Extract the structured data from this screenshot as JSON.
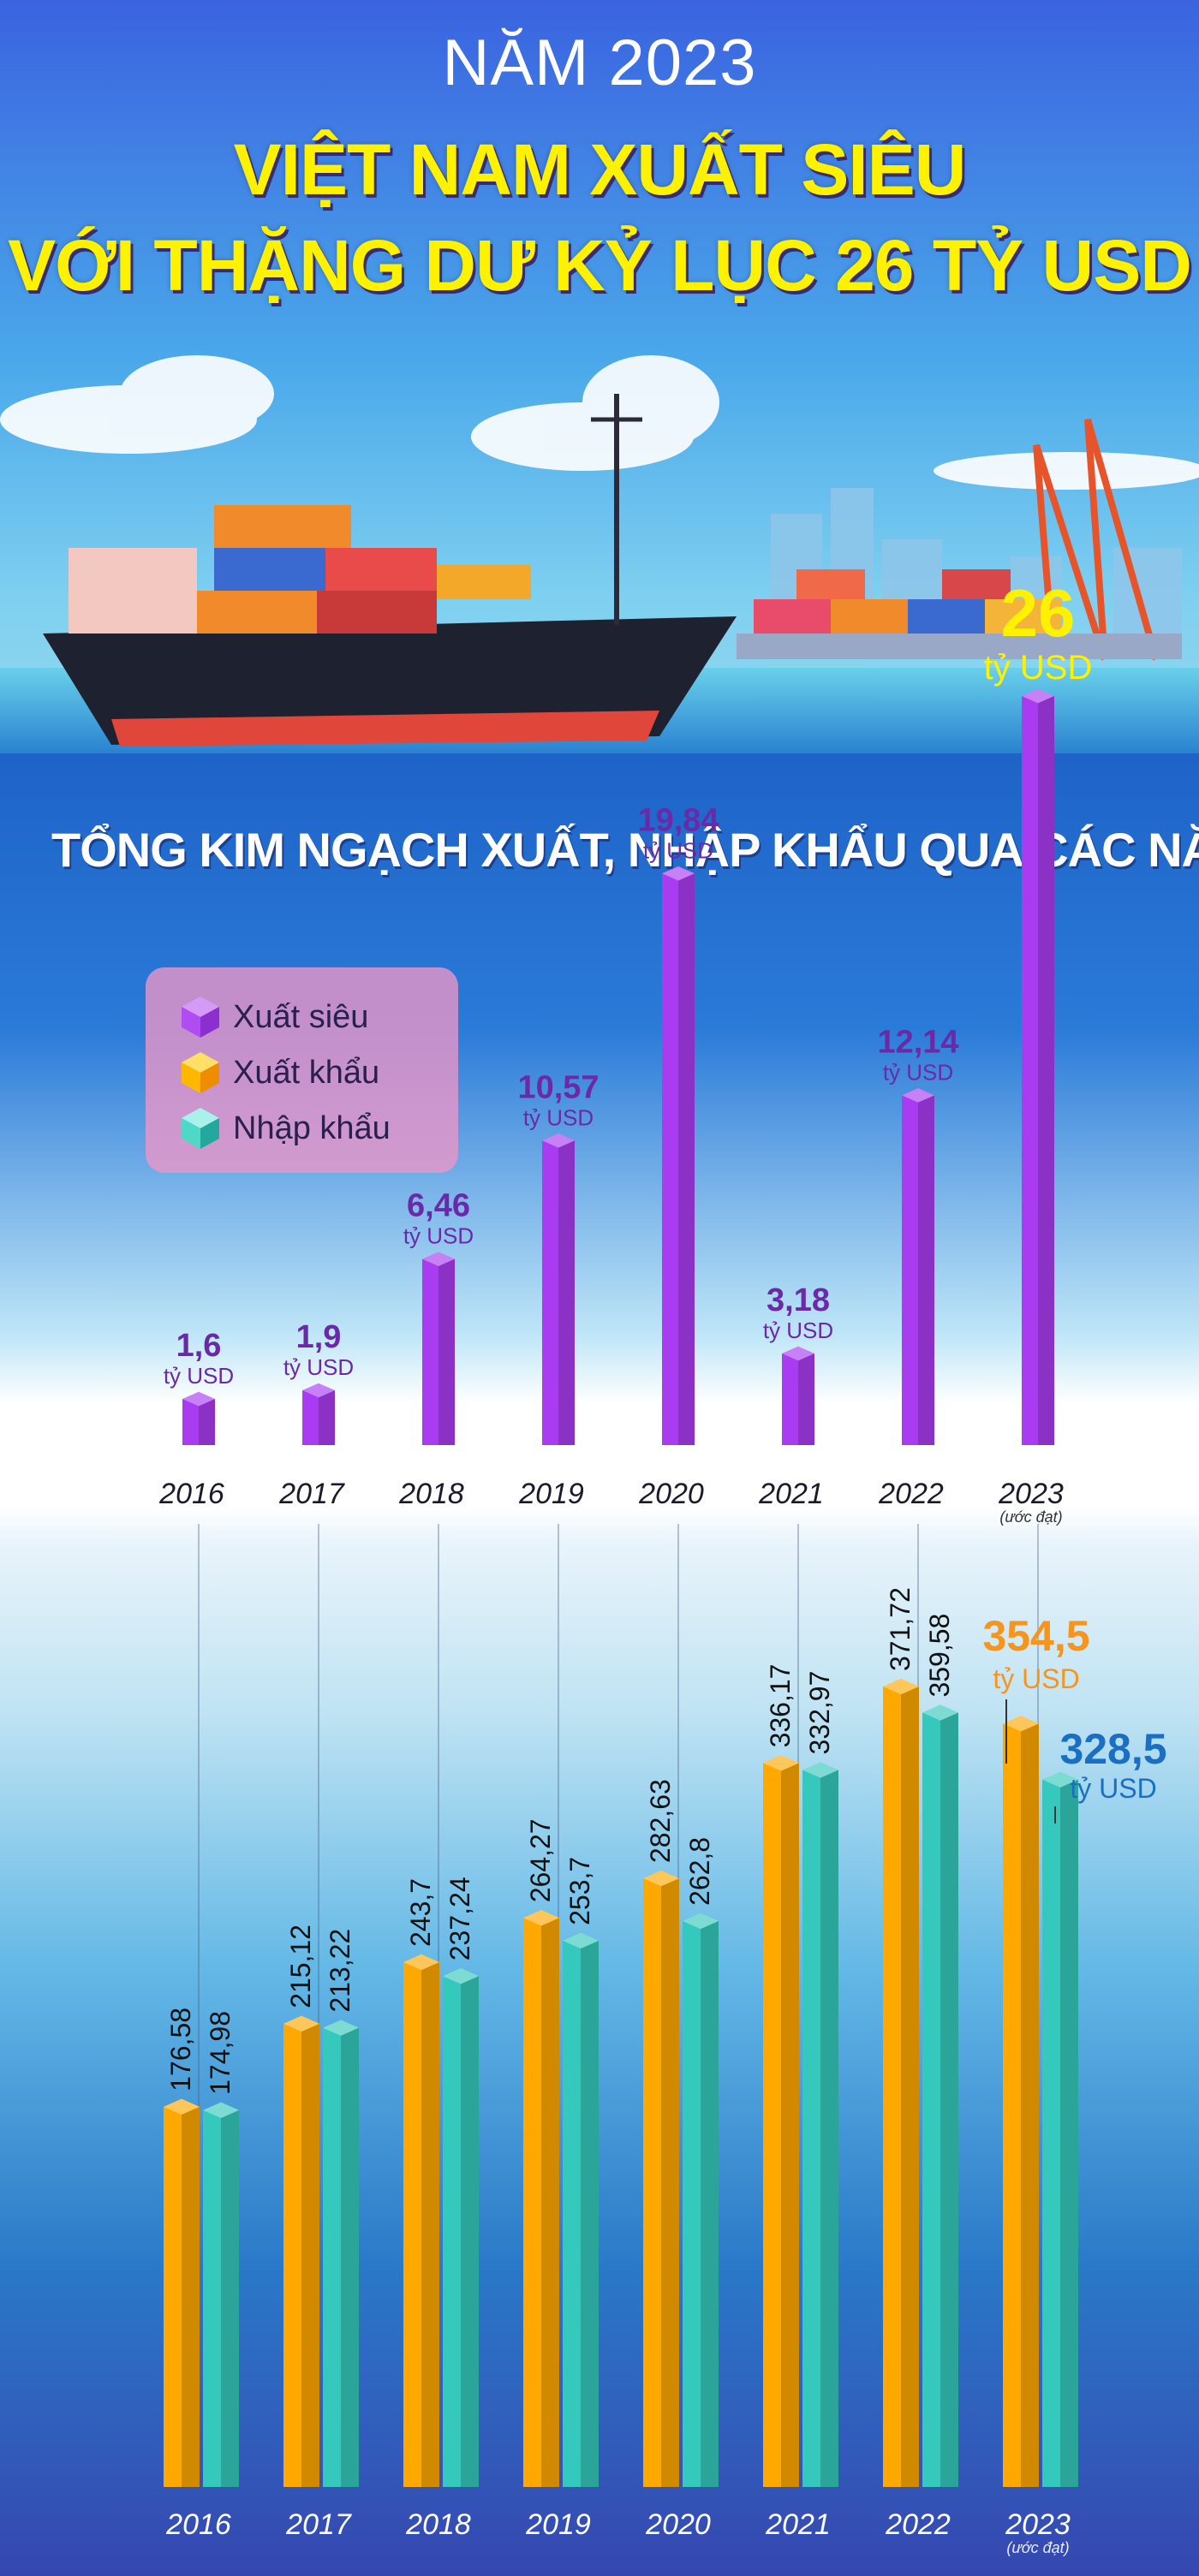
{
  "header": {
    "year_line": "NĂM 2023",
    "title_line1": "VIỆT NAM XUẤT SIÊU",
    "title_line2": "VỚI THẶNG DƯ KỶ LỤC 26 TỶ USD"
  },
  "section_title": "TỔNG KIM NGẠCH XUẤT, NHẬP KHẨU QUA CÁC NĂM",
  "legend": {
    "items": [
      {
        "label": "Xuất siêu",
        "color": "#a93cf0"
      },
      {
        "label": "Xuất khẩu",
        "color": "#ffb400"
      },
      {
        "label": "Nhập khẩu",
        "color": "#3fd6c6"
      }
    ]
  },
  "unit": "tỷ USD",
  "estimate_note": "(ước đạt)",
  "colors": {
    "surplus": "#a93cf0",
    "export": "#ffa800",
    "import": "#35c8bc",
    "surplus_text": "#6a2aa8",
    "highlight_yellow": "#fff200",
    "highlight_orange": "#f7941d",
    "highlight_blue": "#1b6fc2"
  },
  "chart_data": [
    {
      "type": "bar",
      "categories": [
        "2016",
        "2017",
        "2018",
        "2019",
        "2020",
        "2021",
        "2022",
        "2023"
      ],
      "series": [
        {
          "name": "Xuất siêu",
          "values": [
            1.6,
            1.9,
            6.46,
            10.57,
            19.84,
            3.18,
            12.14,
            26
          ]
        }
      ],
      "labels": [
        "1,6",
        "1,9",
        "6,46",
        "10,57",
        "19,84",
        "3,18",
        "12,14",
        "26"
      ],
      "unit": "tỷ USD"
    },
    {
      "type": "bar",
      "categories": [
        "2016",
        "2017",
        "2018",
        "2019",
        "2020",
        "2021",
        "2022",
        "2023"
      ],
      "series": [
        {
          "name": "Xuất khẩu",
          "values": [
            176.58,
            215.12,
            243.7,
            264.27,
            282.63,
            336.17,
            371.72,
            354.5
          ],
          "labels": [
            "176,58",
            "215,12",
            "243,7",
            "264,27",
            "282,63",
            "336,17",
            "371,72",
            "354,5"
          ]
        },
        {
          "name": "Nhập khẩu",
          "values": [
            174.98,
            213.22,
            237.24,
            253.7,
            262.8,
            332.97,
            359.58,
            328.5
          ],
          "labels": [
            "174,98",
            "213,22",
            "237,24",
            "253,7",
            "262,8",
            "332,97",
            "359,58",
            "328,5"
          ]
        }
      ],
      "unit": "tỷ USD"
    }
  ]
}
